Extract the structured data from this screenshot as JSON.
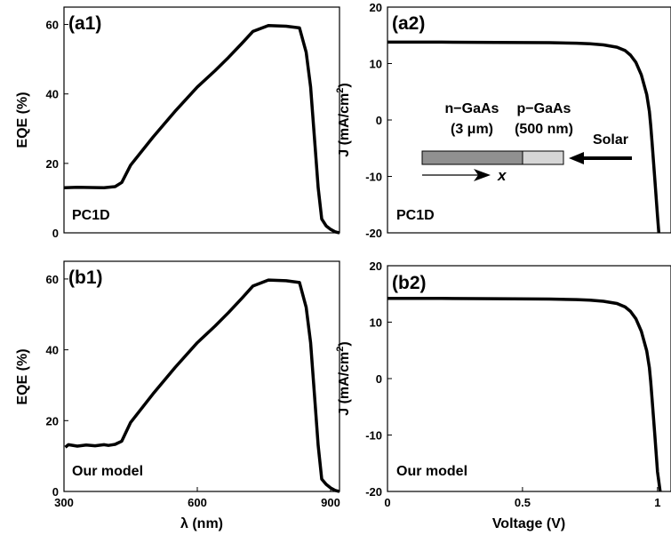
{
  "chart_data": [
    {
      "panel": "a1",
      "type": "line",
      "panel_label": "(a1)",
      "annotation": "PC1D",
      "xlabel": "",
      "ylabel": "EQE (%)",
      "xlim": [
        300,
        920
      ],
      "ylim": [
        0,
        65
      ],
      "xticks": [],
      "yticks": [
        0,
        20,
        40,
        60
      ],
      "series": [
        {
          "x": [
            300,
            330,
            390,
            415,
            430,
            450,
            500,
            550,
            600,
            640,
            670,
            700,
            725,
            760,
            800,
            830,
            845,
            855,
            865,
            872,
            880,
            890,
            900,
            910,
            920
          ],
          "y": [
            13,
            13.1,
            13,
            13.3,
            14.5,
            19.5,
            27.5,
            35,
            42,
            46.7,
            50.5,
            54.5,
            58,
            59.7,
            59.5,
            59,
            52,
            42,
            25,
            13,
            4,
            2,
            1,
            0.3,
            0
          ]
        }
      ]
    },
    {
      "panel": "a2",
      "type": "line",
      "panel_label": "(a2)",
      "annotation": "PC1D",
      "xlabel": "",
      "ylabel": "J (mA/cm",
      "ylabel_sup": "2",
      "ylabel_end": ")",
      "xlim": [
        0,
        1.05
      ],
      "ylim": [
        -20,
        20
      ],
      "xticks": [],
      "yticks": [
        -20,
        -10,
        0,
        10,
        20
      ],
      "series": [
        {
          "x": [
            0,
            0.2,
            0.4,
            0.6,
            0.7,
            0.75,
            0.8,
            0.85,
            0.88,
            0.9,
            0.92,
            0.94,
            0.96,
            0.97,
            0.975,
            0.98,
            0.99,
            1.0,
            1.005
          ],
          "y": [
            13.8,
            13.8,
            13.75,
            13.7,
            13.6,
            13.5,
            13.3,
            12.9,
            12.3,
            11.5,
            10.2,
            8.0,
            4.5,
            1.5,
            -1.0,
            -4.0,
            -10.5,
            -17.0,
            -20.0
          ]
        }
      ]
    },
    {
      "panel": "b1",
      "type": "line",
      "panel_label": "(b1)",
      "annotation": "Our model",
      "xlabel": "λ (nm)",
      "ylabel": "EQE (%)",
      "xlim": [
        300,
        920
      ],
      "ylim": [
        0,
        65
      ],
      "xticks": [
        300,
        600,
        900
      ],
      "yticks": [
        0,
        20,
        40,
        60
      ],
      "series": [
        {
          "x": [
            303,
            310,
            330,
            350,
            370,
            390,
            400,
            415,
            430,
            450,
            500,
            550,
            600,
            640,
            670,
            700,
            725,
            760,
            800,
            830,
            845,
            855,
            865,
            872,
            880,
            890,
            900,
            910,
            920
          ],
          "y": [
            12.5,
            13.2,
            12.8,
            13.1,
            12.9,
            13.2,
            13,
            13.3,
            14.2,
            19.5,
            27.5,
            35,
            42,
            46.7,
            50.5,
            54.5,
            58,
            59.7,
            59.5,
            59,
            52,
            42,
            25,
            13,
            3.5,
            2,
            1,
            0.3,
            0
          ]
        }
      ]
    },
    {
      "panel": "b2",
      "type": "line",
      "panel_label": "(b2)",
      "annotation": "Our model",
      "xlabel": "Voltage (V)",
      "ylabel": "J (mA/cm",
      "ylabel_sup": "2",
      "ylabel_end": ")",
      "xlim": [
        0,
        1.05
      ],
      "ylim": [
        -20,
        20
      ],
      "xticks": [
        0,
        0.5,
        1
      ],
      "yticks": [
        -20,
        -10,
        0,
        10,
        20
      ],
      "series": [
        {
          "x": [
            0,
            0.2,
            0.4,
            0.6,
            0.7,
            0.75,
            0.8,
            0.85,
            0.88,
            0.9,
            0.92,
            0.94,
            0.96,
            0.97,
            0.975,
            0.98,
            0.99,
            1.0,
            1.01
          ],
          "y": [
            14.2,
            14.2,
            14.15,
            14.1,
            14.0,
            13.9,
            13.7,
            13.3,
            12.7,
            11.9,
            10.6,
            8.4,
            4.9,
            1.9,
            -0.6,
            -3.6,
            -10.0,
            -16.5,
            -20.0
          ]
        }
      ]
    }
  ],
  "inset": {
    "n_label": "n−GaAs",
    "n_thickness": "(3 μm)",
    "p_label": "p−GaAs",
    "p_thickness": "(500 nm)",
    "sun_label": "Solar",
    "axis_label": "x"
  }
}
